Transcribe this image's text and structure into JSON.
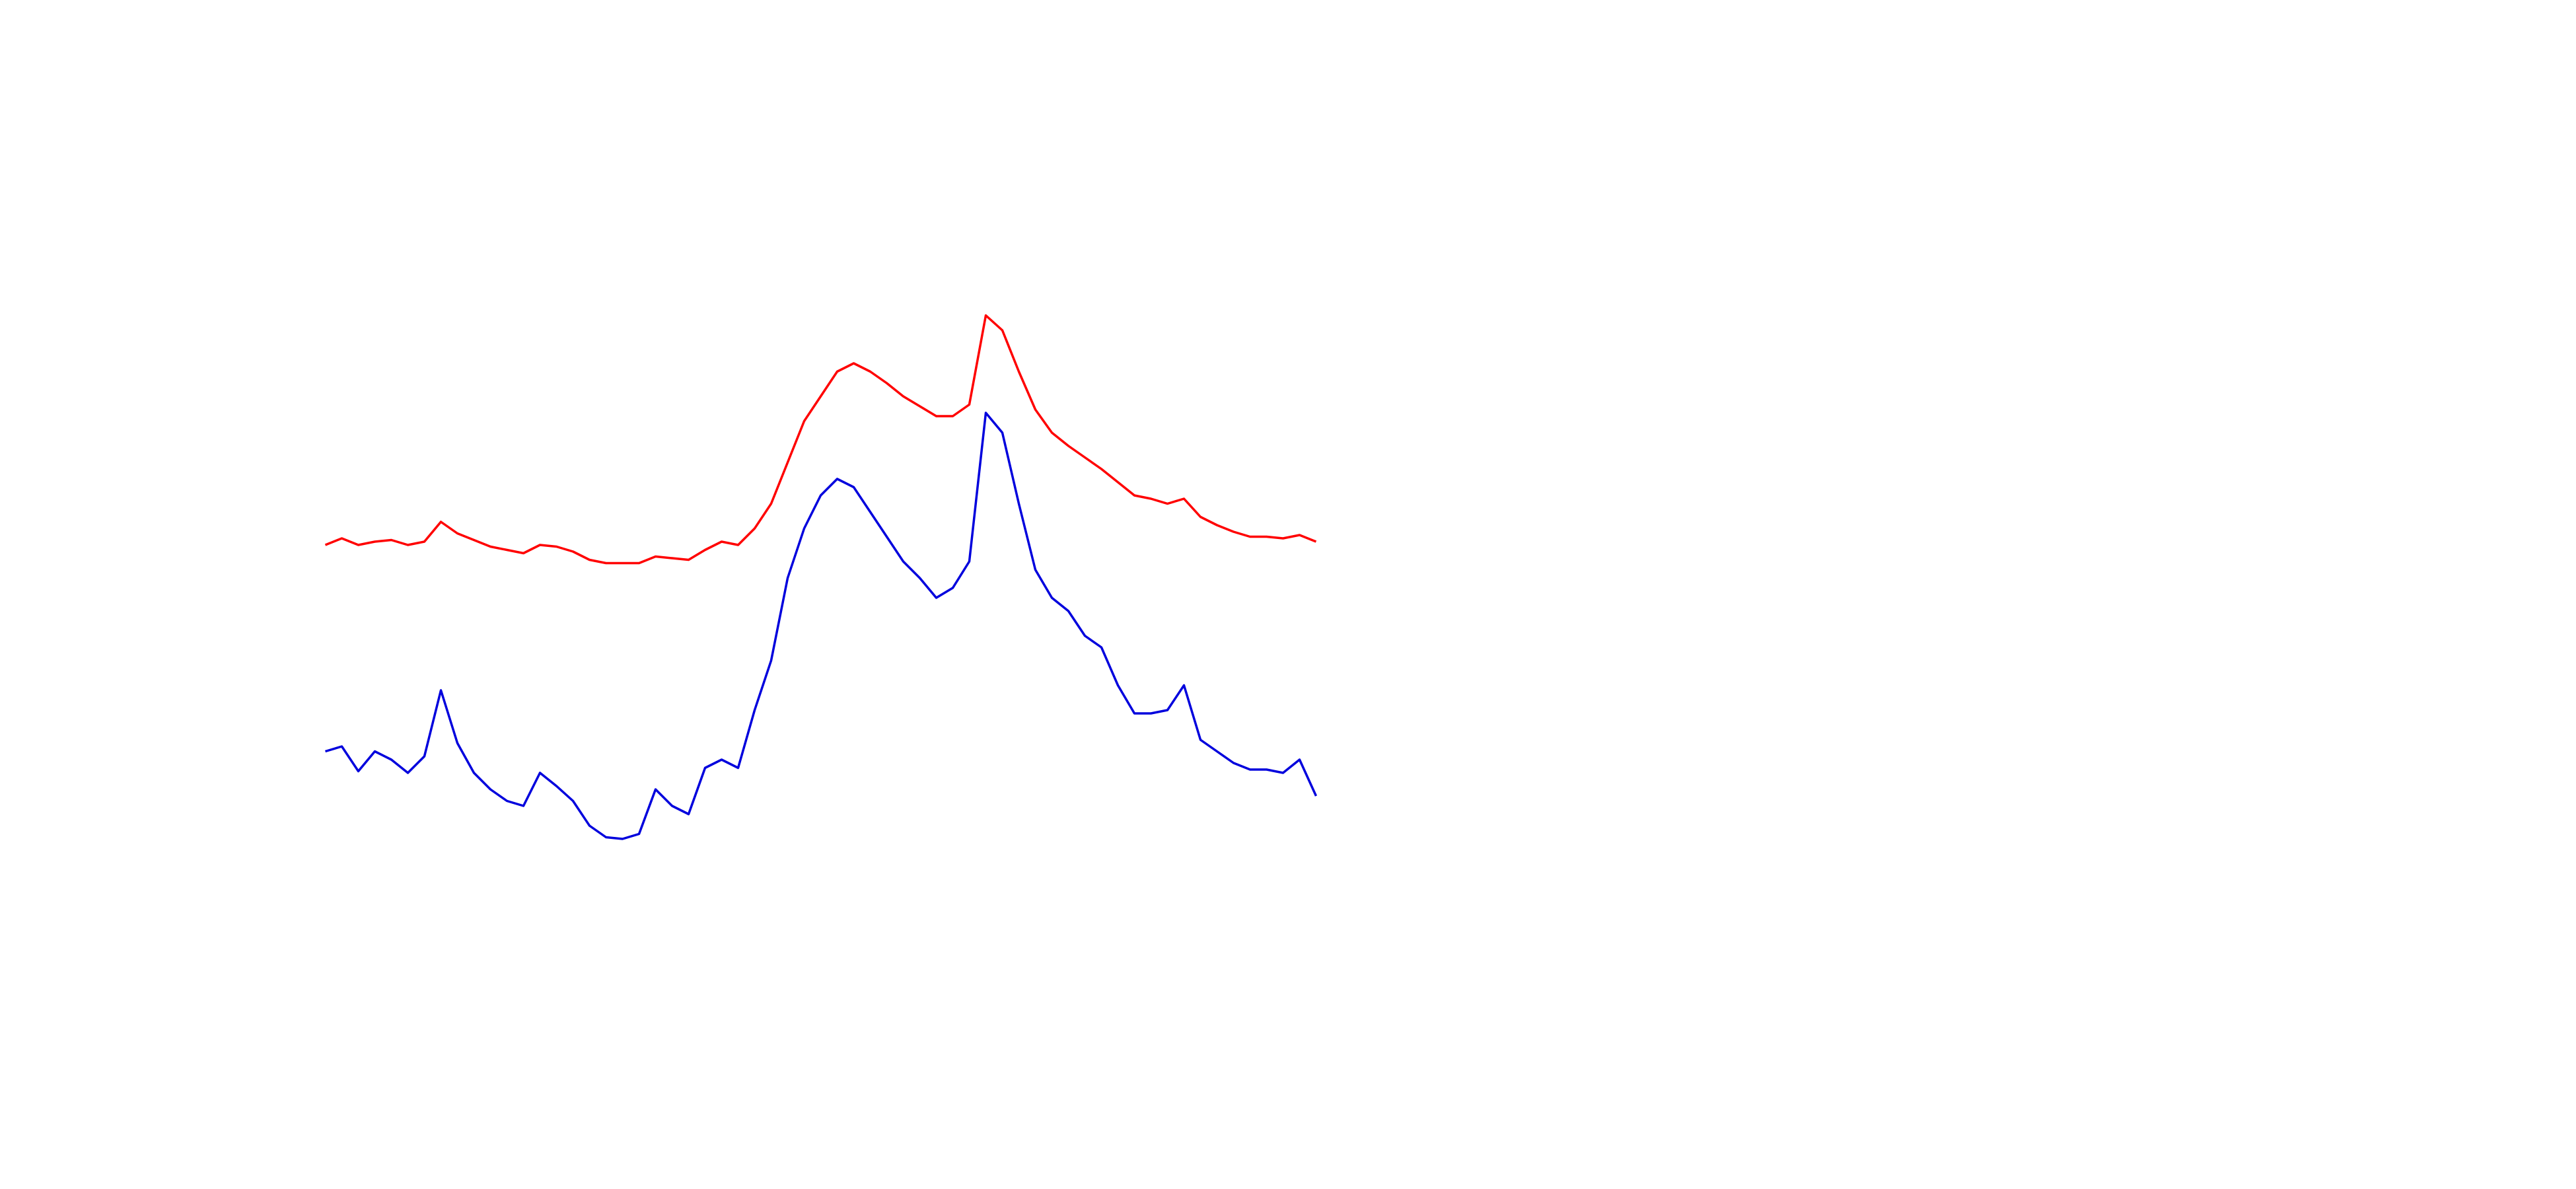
{
  "chart_data": {
    "type": "line",
    "ylim": [
      0,
      720
    ],
    "series": [
      {
        "color": "#ff0000",
        "values": [
          390,
          394,
          390,
          392,
          393,
          390,
          392,
          404,
          397,
          393,
          389,
          387,
          385,
          390,
          389,
          386,
          381,
          379,
          379,
          379,
          383,
          382,
          381,
          387,
          392,
          390,
          400,
          415,
          440,
          465,
          480,
          495,
          500,
          495,
          488,
          480,
          474,
          468,
          468,
          475,
          529,
          520,
          495,
          472,
          458,
          450,
          443,
          436,
          428,
          420,
          418,
          415,
          418,
          407,
          402,
          398,
          395,
          395,
          394,
          396,
          392
        ]
      },
      {
        "color": "#0000dd",
        "values": [
          265,
          268,
          253,
          265,
          260,
          252,
          262,
          302,
          270,
          252,
          242,
          235,
          232,
          252,
          244,
          235,
          220,
          213,
          212,
          215,
          242,
          232,
          227,
          255,
          260,
          255,
          290,
          320,
          370,
          400,
          420,
          430,
          425,
          410,
          395,
          380,
          370,
          358,
          364,
          380,
          470,
          458,
          415,
          375,
          358,
          350,
          335,
          328,
          305,
          288,
          288,
          290,
          305,
          272,
          265,
          258,
          254,
          254,
          252,
          260,
          238
        ]
      }
    ]
  }
}
